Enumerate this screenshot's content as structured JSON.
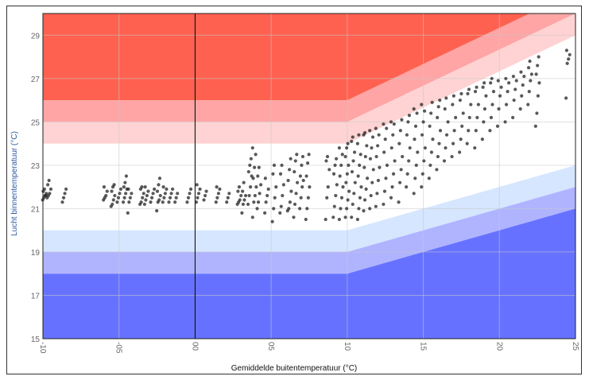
{
  "chart_data": {
    "type": "scatter",
    "xlabel": "Gemiddelde buitentemperatuur (°C)",
    "ylabel": "Lucht binnentemperatuur (°C)",
    "xlim": [
      -10,
      25
    ],
    "ylim": [
      15,
      30
    ],
    "xticks": [
      -10,
      -5,
      0,
      5,
      10,
      15,
      20,
      25
    ],
    "xtick_labels": [
      "-10",
      "-05",
      "00",
      "05",
      "10",
      "15",
      "20",
      "25"
    ],
    "yticks": [
      15,
      17,
      19,
      21,
      23,
      25,
      27,
      29
    ],
    "ytick_labels": [
      "15",
      "17",
      "19",
      "21",
      "23",
      "25",
      "27",
      "29"
    ],
    "grid": true,
    "reference_line_x": 0,
    "bands": [
      {
        "name": "upper-3",
        "color": "#ff6150",
        "edge": [
          [
            -10,
            26
          ],
          [
            10,
            26
          ],
          [
            25,
            31
          ]
        ],
        "to": "top"
      },
      {
        "name": "upper-2",
        "color": "#ffa5a5",
        "edge": [
          [
            -10,
            25
          ],
          [
            10,
            25
          ],
          [
            25,
            30
          ]
        ],
        "to": [
          [
            -10,
            26
          ],
          [
            10,
            26
          ],
          [
            25,
            31
          ]
        ]
      },
      {
        "name": "upper-1",
        "color": "#ffd3d3",
        "edge": [
          [
            -10,
            24
          ],
          [
            10,
            24
          ],
          [
            25,
            29
          ]
        ],
        "to": [
          [
            -10,
            25
          ],
          [
            10,
            25
          ],
          [
            25,
            30
          ]
        ]
      },
      {
        "name": "lower-1",
        "color": "#d6e6ff",
        "edge": [
          [
            -10,
            20
          ],
          [
            10,
            20
          ],
          [
            25,
            23
          ]
        ],
        "to": [
          [
            -10,
            19
          ],
          [
            10,
            19
          ],
          [
            25,
            22
          ]
        ]
      },
      {
        "name": "lower-2",
        "color": "#b0b4ff",
        "edge": [
          [
            -10,
            19
          ],
          [
            10,
            19
          ],
          [
            25,
            22
          ]
        ],
        "to": [
          [
            -10,
            18
          ],
          [
            10,
            18
          ],
          [
            25,
            21
          ]
        ]
      },
      {
        "name": "lower-3",
        "color": "#6672ff",
        "edge": [
          [
            -10,
            18
          ],
          [
            10,
            18
          ],
          [
            25,
            21
          ]
        ],
        "to": "bottom"
      }
    ],
    "point_color": "#222222",
    "columns": [
      {
        "x": -9.9,
        "y": [
          21.4,
          21.5,
          21.6,
          21.7,
          21.8,
          21.9,
          21.6
        ]
      },
      {
        "x": -9.6,
        "y": [
          21.5,
          21.6,
          21.7,
          21.9,
          22.1,
          22.3
        ]
      },
      {
        "x": -8.6,
        "y": [
          21.3,
          21.5,
          21.7,
          21.9
        ]
      },
      {
        "x": -5.9,
        "y": [
          21.4,
          21.5,
          21.6,
          21.8,
          22.0
        ]
      },
      {
        "x": -5.4,
        "y": [
          21.1,
          21.2,
          21.4,
          21.6,
          21.8,
          22.0,
          22.1
        ]
      },
      {
        "x": -5.0,
        "y": [
          21.3,
          21.5,
          21.7,
          21.9
        ]
      },
      {
        "x": -4.6,
        "y": [
          21.3,
          21.5,
          21.7,
          21.9,
          22.0,
          22.2,
          22.5
        ]
      },
      {
        "x": -4.3,
        "y": [
          20.8,
          21.3,
          21.5,
          21.7,
          21.9
        ]
      },
      {
        "x": -3.5,
        "y": [
          21.2,
          21.3,
          21.5,
          21.7,
          21.9,
          22.0
        ]
      },
      {
        "x": -3.2,
        "y": [
          21.2,
          21.4,
          21.6,
          21.8,
          22.0
        ]
      },
      {
        "x": -2.8,
        "y": [
          21.3,
          21.5,
          21.7,
          21.9
        ]
      },
      {
        "x": -2.4,
        "y": [
          20.9,
          21.3,
          21.4,
          21.6,
          21.8,
          22.1,
          22.4
        ]
      },
      {
        "x": -2.0,
        "y": [
          21.3,
          21.5,
          21.7,
          21.9,
          22.0
        ]
      },
      {
        "x": -1.6,
        "y": [
          21.3,
          21.5,
          21.7,
          21.9
        ]
      },
      {
        "x": -1.2,
        "y": [
          21.3,
          21.5,
          21.7
        ]
      },
      {
        "x": -0.4,
        "y": [
          21.3,
          21.5,
          21.7,
          21.9
        ]
      },
      {
        "x": 0.2,
        "y": [
          21.3,
          21.5,
          21.7,
          21.9,
          22.1
        ]
      },
      {
        "x": 0.7,
        "y": [
          21.4,
          21.6,
          21.8
        ]
      },
      {
        "x": 1.5,
        "y": [
          21.3,
          21.5,
          21.7,
          21.9,
          22.0
        ]
      },
      {
        "x": 2.2,
        "y": [
          21.3,
          21.5,
          21.7
        ]
      },
      {
        "x": 2.9,
        "y": [
          21.2,
          21.3,
          21.4,
          21.6,
          21.8,
          22.0
        ]
      },
      {
        "x": 3.2,
        "y": [
          20.8,
          21.2,
          21.4,
          21.6,
          21.8,
          22.2
        ]
      },
      {
        "x": 3.6,
        "y": [
          21.2,
          21.6,
          22.0,
          22.5,
          22.7,
          23.0,
          23.3
        ]
      },
      {
        "x": 3.9,
        "y": [
          20.6,
          21.3,
          21.6,
          22.0,
          22.4,
          22.9,
          23.5,
          23.8
        ]
      },
      {
        "x": 4.2,
        "y": [
          21.0,
          21.3,
          21.7,
          22.1,
          22.5,
          22.9
        ]
      },
      {
        "x": 4.7,
        "y": [
          20.8,
          21.3,
          21.6,
          21.9,
          22.4
        ]
      },
      {
        "x": 5.2,
        "y": [
          20.4,
          21.0,
          21.5,
          22.0,
          22.6,
          23.0
        ]
      },
      {
        "x": 5.7,
        "y": [
          20.8,
          21.1,
          21.6,
          22.1,
          22.6,
          23.0
        ]
      },
      {
        "x": 6.2,
        "y": [
          20.9,
          21.0,
          21.3,
          21.8,
          22.3,
          22.8,
          23.3
        ]
      },
      {
        "x": 6.6,
        "y": [
          20.6,
          21.2,
          21.7,
          22.2,
          22.7,
          23.2,
          23.5
        ]
      },
      {
        "x": 7.0,
        "y": [
          21.0,
          21.5,
          22.0,
          22.3,
          22.5,
          23.0,
          23.4
        ]
      },
      {
        "x": 7.4,
        "y": [
          20.5,
          21.0,
          21.5,
          22.0,
          22.5,
          23.1,
          23.5
        ]
      },
      {
        "x": 8.7,
        "y": [
          20.5,
          21.5,
          22.0,
          22.8,
          23.2,
          23.4
        ]
      },
      {
        "x": 9.2,
        "y": [
          20.6,
          21.1,
          21.6,
          22.1,
          22.6,
          23.0,
          23.3
        ]
      },
      {
        "x": 9.6,
        "y": [
          20.5,
          21.0,
          21.5,
          22.0,
          22.5,
          23.0,
          23.5,
          23.8
        ]
      },
      {
        "x": 10.0,
        "y": [
          20.6,
          21.0,
          21.4,
          21.8,
          22.2,
          22.6,
          23.0,
          23.4,
          23.8,
          24.0
        ]
      },
      {
        "x": 10.4,
        "y": [
          20.6,
          21.2,
          21.7,
          22.2,
          22.7,
          23.2,
          23.6,
          24.1,
          24.3
        ]
      },
      {
        "x": 10.8,
        "y": [
          20.5,
          21.0,
          21.5,
          22.0,
          22.5,
          23.0,
          23.5,
          24.0,
          24.4
        ]
      },
      {
        "x": 11.2,
        "y": [
          20.9,
          21.4,
          21.9,
          22.4,
          22.9,
          23.4,
          23.9,
          24.4,
          24.5
        ]
      },
      {
        "x": 11.6,
        "y": [
          21.0,
          21.6,
          22.2,
          22.8,
          23.3,
          23.8,
          24.3,
          24.6
        ]
      },
      {
        "x": 12.0,
        "y": [
          21.1,
          21.7,
          22.3,
          22.9,
          23.4,
          23.9,
          24.4,
          24.7
        ]
      },
      {
        "x": 12.5,
        "y": [
          21.2,
          21.8,
          22.4,
          23.0,
          23.6,
          24.2,
          24.7,
          24.9
        ]
      },
      {
        "x": 13.0,
        "y": [
          21.5,
          22.0,
          22.6,
          23.2,
          23.8,
          24.4,
          24.9,
          25.0
        ]
      },
      {
        "x": 13.5,
        "y": [
          21.3,
          22.2,
          22.8,
          23.4,
          24.0,
          24.6,
          25.1
        ]
      },
      {
        "x": 14.0,
        "y": [
          22.0,
          22.6,
          23.2,
          23.8,
          24.4,
          25.0,
          25.3
        ]
      },
      {
        "x": 14.5,
        "y": [
          21.7,
          22.4,
          23.0,
          23.6,
          24.2,
          24.8,
          25.4,
          25.6
        ]
      },
      {
        "x": 15.0,
        "y": [
          22.0,
          22.6,
          23.2,
          23.8,
          24.4,
          25.0,
          25.5,
          25.8
        ]
      },
      {
        "x": 15.5,
        "y": [
          22.4,
          23.0,
          23.6,
          24.2,
          24.8,
          25.4,
          25.9
        ]
      },
      {
        "x": 16.0,
        "y": [
          22.8,
          23.4,
          24.0,
          24.6,
          25.2,
          25.7,
          26.0
        ]
      },
      {
        "x": 16.5,
        "y": [
          23.2,
          23.8,
          24.4,
          25.0,
          25.6,
          26.1
        ]
      },
      {
        "x": 17.0,
        "y": [
          23.4,
          24.0,
          24.6,
          25.2,
          25.8,
          26.2
        ]
      },
      {
        "x": 17.5,
        "y": [
          23.6,
          24.2,
          24.8,
          25.4,
          26.0,
          26.3
        ]
      },
      {
        "x": 18.0,
        "y": [
          24.0,
          24.6,
          25.2,
          25.8,
          26.3,
          26.5
        ]
      },
      {
        "x": 18.5,
        "y": [
          23.8,
          24.6,
          25.2,
          25.8,
          26.4,
          26.6
        ]
      },
      {
        "x": 19.0,
        "y": [
          24.2,
          25.0,
          25.6,
          26.2,
          26.6,
          26.8
        ]
      },
      {
        "x": 19.5,
        "y": [
          24.6,
          25.2,
          25.8,
          26.4,
          26.8,
          27.0
        ]
      },
      {
        "x": 20.0,
        "y": [
          24.8,
          25.6,
          26.2,
          26.6,
          26.9
        ]
      },
      {
        "x": 20.5,
        "y": [
          25.0,
          25.8,
          26.4,
          26.8,
          27.0
        ]
      },
      {
        "x": 21.0,
        "y": [
          25.2,
          26.0,
          26.5,
          26.9,
          27.1
        ]
      },
      {
        "x": 21.5,
        "y": [
          25.6,
          26.2,
          26.7,
          27.1,
          27.3
        ]
      },
      {
        "x": 22.0,
        "y": [
          25.8,
          26.4,
          26.9,
          27.2,
          27.5,
          27.8
        ]
      },
      {
        "x": 22.5,
        "y": [
          24.8,
          25.4,
          26.2,
          26.8,
          27.2,
          27.6,
          28.0
        ]
      },
      {
        "x": 24.5,
        "y": [
          26.1,
          27.7,
          27.9,
          28.1,
          28.3
        ]
      }
    ]
  }
}
